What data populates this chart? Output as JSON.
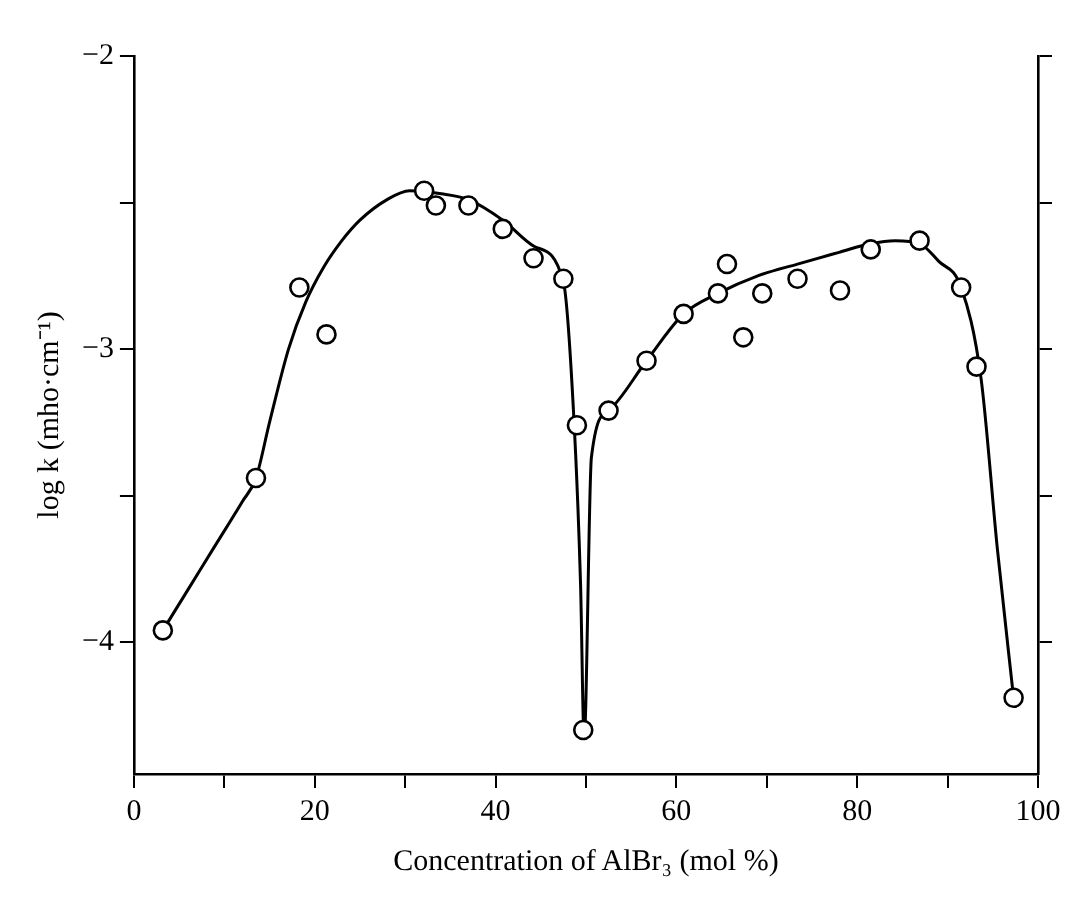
{
  "chart_data": {
    "type": "scatter",
    "xlabel": "Concentration of AlBr₃ (mol %)",
    "ylabel": "log k (mho·cm⁻¹)",
    "xlim": [
      0,
      100
    ],
    "xticks": [
      0,
      {
        "value": 10,
        "label": null
      },
      20,
      {
        "value": 30,
        "label": null
      },
      40,
      {
        "value": 50,
        "label": null
      },
      60,
      {
        "value": 70,
        "label": null
      },
      80,
      {
        "value": 90,
        "label": null
      },
      100
    ],
    "ylim": [
      -4.45,
      -2
    ],
    "yticks": [
      {
        "value": -2,
        "label": "−2"
      },
      {
        "value": -2.5,
        "label": null
      },
      {
        "value": -3,
        "label": "−3"
      },
      {
        "value": -3.5,
        "label": null
      },
      {
        "value": -4,
        "label": "−4"
      }
    ],
    "grid": false,
    "legend": false,
    "marker": "circle",
    "series": [
      {
        "color": "#000000",
        "x": [
          3.2,
          13.5,
          18.3,
          21.3,
          32.1,
          33.4,
          37.0,
          40.8,
          44.2,
          47.5,
          49.0,
          49.7,
          52.5,
          56.7,
          60.8,
          64.6,
          65.6,
          67.4,
          69.5,
          73.4,
          78.1,
          81.5,
          86.9,
          91.5,
          93.2,
          97.3
        ],
        "values": [
          -3.96,
          -3.44,
          -2.79,
          -2.95,
          -2.46,
          -2.51,
          -2.51,
          -2.59,
          -2.69,
          -2.76,
          -3.26,
          -4.3,
          -3.21,
          -3.04,
          -2.88,
          -2.81,
          -2.71,
          -2.96,
          -2.81,
          -2.76,
          -2.8,
          -2.66,
          -2.63,
          -2.79,
          -3.06,
          -4.19
        ]
      },
      {
        "type": "line",
        "color": "#000000",
        "marker": "none",
        "line_style": "solid",
        "x": [
          3.2,
          6,
          9,
          12,
          13.5,
          15,
          17.1,
          19,
          21,
          23,
          25,
          28,
          30.5,
          34,
          37,
          40.8,
          44.3,
          47.5,
          48.6,
          49.4,
          49.8,
          50.6,
          52.5,
          56.7,
          60.8,
          64.6,
          69,
          73.4,
          78,
          81.5,
          84.2,
          86.9,
          89,
          91.5,
          93.7,
          95.5,
          97.3
        ],
        "values": [
          -3.96,
          -3.82,
          -3.67,
          -3.52,
          -3.44,
          -3.25,
          -3.0,
          -2.84,
          -2.72,
          -2.63,
          -2.56,
          -2.49,
          -2.46,
          -2.47,
          -2.49,
          -2.56,
          -2.65,
          -2.77,
          -3.2,
          -3.8,
          -4.33,
          -3.37,
          -3.21,
          -3.04,
          -2.88,
          -2.81,
          -2.75,
          -2.71,
          -2.67,
          -2.64,
          -2.63,
          -2.64,
          -2.7,
          -2.79,
          -3.1,
          -3.68,
          -4.19
        ]
      }
    ]
  }
}
